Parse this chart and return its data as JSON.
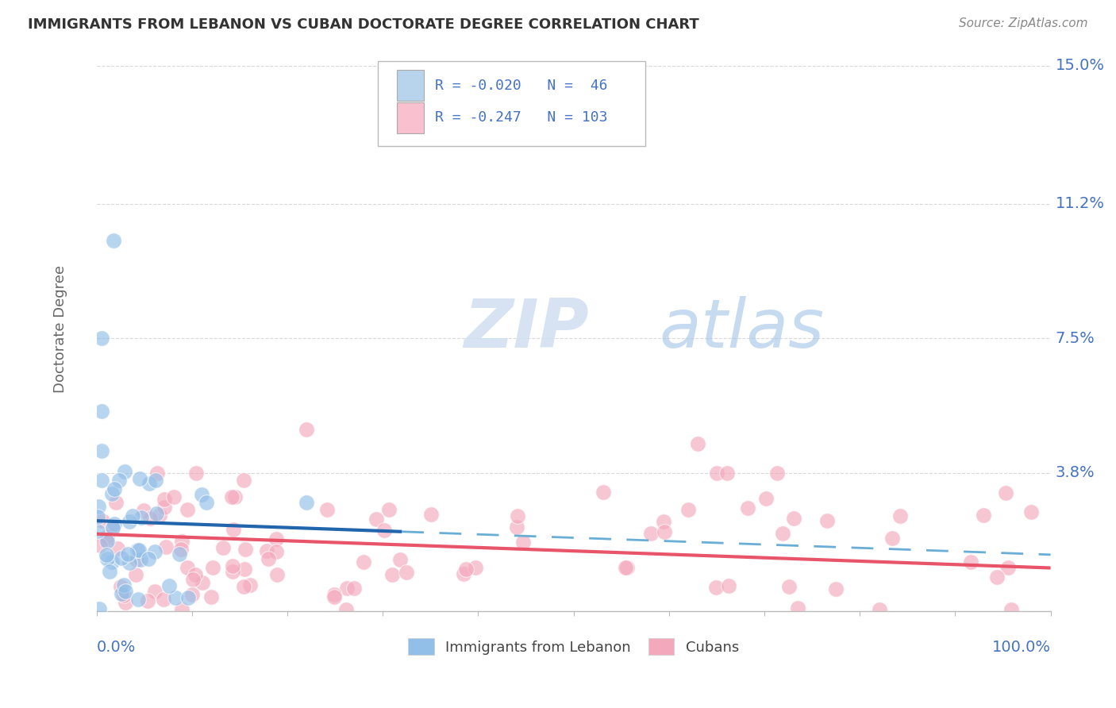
{
  "title": "IMMIGRANTS FROM LEBANON VS CUBAN DOCTORATE DEGREE CORRELATION CHART",
  "source": "Source: ZipAtlas.com",
  "ylabel": "Doctorate Degree",
  "xlim": [
    0.0,
    1.0
  ],
  "ylim": [
    0.0,
    0.155
  ],
  "ytick_positions": [
    0.0,
    0.038,
    0.075,
    0.112,
    0.15
  ],
  "ytick_labels": [
    "",
    "3.8%",
    "7.5%",
    "11.2%",
    "15.0%"
  ],
  "grid_color": "#d0d0d0",
  "background_color": "#ffffff",
  "legend_text_r1": "R = -0.020",
  "legend_text_n1": "N =  46",
  "legend_text_r2": "R = -0.247",
  "legend_text_n2": "N = 103",
  "color_blue": "#92bfe8",
  "color_pink": "#f4a8bc",
  "line_blue_solid": "#2166ac",
  "line_blue_dash": "#6aaed6",
  "line_pink": "#e8546a",
  "legend_box_blue": "#b8d4ed",
  "legend_box_pink": "#f9c0cf",
  "watermark_zip": "ZIP",
  "watermark_atlas": "atlas",
  "title_color": "#333333",
  "source_color": "#888888",
  "label_color": "#4472c4",
  "ylabel_color": "#666666"
}
